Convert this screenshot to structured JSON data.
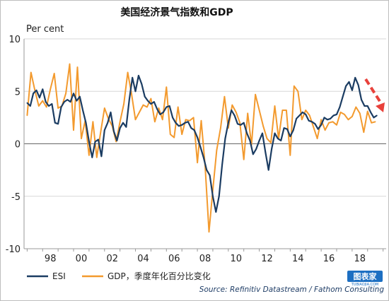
{
  "chart_data": {
    "type": "line",
    "title": "美国经济景气指数和GDP",
    "ylabel": "Per cent",
    "ylim": [
      -10,
      10
    ],
    "yticks": [
      "10",
      "5",
      "0",
      "-5",
      "-10"
    ],
    "xlim": [
      1996.8,
      2020.2
    ],
    "xticks": [
      "98",
      "00",
      "02",
      "04",
      "06",
      "08",
      "10",
      "12",
      "14",
      "16",
      "18"
    ],
    "grid": "horizontal",
    "legend_position": "bottom-left",
    "series": [
      {
        "name": "ESI",
        "color": "#1b3c62",
        "x": [
          1997.0,
          1997.2,
          1997.4,
          1997.6,
          1997.8,
          1998.0,
          1998.2,
          1998.4,
          1998.6,
          1998.8,
          1999.0,
          1999.2,
          1999.4,
          1999.6,
          1999.8,
          2000.0,
          2000.2,
          2000.4,
          2000.6,
          2000.8,
          2001.0,
          2001.2,
          2001.4,
          2001.6,
          2001.8,
          2002.0,
          2002.2,
          2002.4,
          2002.6,
          2002.8,
          2003.0,
          2003.2,
          2003.4,
          2003.6,
          2003.8,
          2004.0,
          2004.2,
          2004.4,
          2004.6,
          2004.8,
          2005.0,
          2005.2,
          2005.4,
          2005.6,
          2005.8,
          2006.0,
          2006.2,
          2006.4,
          2006.6,
          2006.8,
          2007.0,
          2007.2,
          2007.4,
          2007.6,
          2007.8,
          2008.0,
          2008.2,
          2008.4,
          2008.6,
          2008.8,
          2009.0,
          2009.2,
          2009.4,
          2009.6,
          2009.8,
          2010.0,
          2010.2,
          2010.4,
          2010.6,
          2010.8,
          2011.0,
          2011.2,
          2011.4,
          2011.6,
          2011.8,
          2012.0,
          2012.2,
          2012.4,
          2012.6,
          2012.8,
          2013.0,
          2013.2,
          2013.4,
          2013.6,
          2013.8,
          2014.0,
          2014.2,
          2014.4,
          2014.6,
          2014.8,
          2015.0,
          2015.2,
          2015.4,
          2015.6,
          2015.8,
          2016.0,
          2016.2,
          2016.4,
          2016.6,
          2016.8,
          2017.0,
          2017.2,
          2017.4,
          2017.6,
          2017.8,
          2018.0,
          2018.2,
          2018.4,
          2018.6,
          2018.8,
          2019.0,
          2019.2,
          2019.4,
          2019.6
        ],
        "values": [
          3.9,
          3.6,
          4.8,
          5.1,
          4.4,
          5.2,
          4.0,
          3.6,
          3.8,
          2.0,
          1.9,
          3.5,
          4.0,
          4.2,
          4.0,
          4.8,
          4.1,
          4.5,
          3.2,
          2.0,
          0.2,
          -1.3,
          0.2,
          0.4,
          -1.2,
          1.3,
          2.0,
          3.0,
          1.2,
          0.3,
          1.5,
          2.0,
          1.6,
          4.2,
          6.3,
          5.0,
          6.5,
          5.7,
          4.5,
          4.1,
          3.8,
          4.0,
          3.3,
          2.8,
          3.0,
          3.5,
          3.6,
          2.5,
          2.0,
          1.7,
          1.8,
          2.0,
          2.1,
          1.5,
          1.3,
          0.6,
          -0.3,
          -1.3,
          -2.5,
          -3.0,
          -5.0,
          -6.5,
          -5.0,
          -2.0,
          0.5,
          2.0,
          3.2,
          2.7,
          1.9,
          1.8,
          2.0,
          1.0,
          0.3,
          -1.0,
          -0.5,
          0.3,
          1.0,
          -0.8,
          -2.5,
          -0.5,
          1.0,
          0.5,
          0.3,
          1.5,
          1.4,
          0.7,
          1.3,
          2.4,
          2.7,
          3.0,
          2.8,
          2.2,
          2.1,
          1.9,
          1.4,
          1.8,
          2.5,
          2.3,
          2.4,
          2.7,
          2.8,
          3.5,
          4.5,
          5.5,
          5.9,
          5.1,
          6.3,
          5.6,
          4.2,
          3.6,
          3.6,
          3.0,
          2.5,
          2.7
        ]
      },
      {
        "name": "GDP，季度年化百分比变化",
        "color": "#f39a2e",
        "x": [
          1997.0,
          1997.25,
          1997.5,
          1997.75,
          1998.0,
          1998.25,
          1998.5,
          1998.75,
          1999.0,
          1999.25,
          1999.5,
          1999.75,
          2000.0,
          2000.25,
          2000.5,
          2000.75,
          2001.0,
          2001.25,
          2001.5,
          2001.75,
          2002.0,
          2002.25,
          2002.5,
          2002.75,
          2003.0,
          2003.25,
          2003.5,
          2003.75,
          2004.0,
          2004.25,
          2004.5,
          2004.75,
          2005.0,
          2005.25,
          2005.5,
          2005.75,
          2006.0,
          2006.25,
          2006.5,
          2006.75,
          2007.0,
          2007.25,
          2007.5,
          2007.75,
          2008.0,
          2008.25,
          2008.5,
          2008.75,
          2009.0,
          2009.25,
          2009.5,
          2009.75,
          2010.0,
          2010.25,
          2010.5,
          2010.75,
          2011.0,
          2011.25,
          2011.5,
          2011.75,
          2012.0,
          2012.25,
          2012.5,
          2012.75,
          2013.0,
          2013.25,
          2013.5,
          2013.75,
          2014.0,
          2014.25,
          2014.5,
          2014.75,
          2015.0,
          2015.25,
          2015.5,
          2015.75,
          2016.0,
          2016.25,
          2016.5,
          2016.75,
          2017.0,
          2017.25,
          2017.5,
          2017.75,
          2018.0,
          2018.25,
          2018.5,
          2018.75,
          2019.0,
          2019.25,
          2019.5
        ],
        "values": [
          2.7,
          6.8,
          5.1,
          3.6,
          4.1,
          3.5,
          5.2,
          6.7,
          3.4,
          3.6,
          4.8,
          7.6,
          1.3,
          7.3,
          0.5,
          2.2,
          -1.1,
          2.1,
          -1.3,
          1.1,
          3.4,
          2.4,
          1.7,
          0.2,
          2.1,
          3.8,
          6.8,
          4.7,
          2.3,
          3.0,
          3.7,
          3.5,
          4.3,
          2.1,
          3.4,
          2.3,
          5.4,
          0.9,
          0.6,
          3.5,
          0.9,
          2.3,
          2.2,
          2.5,
          -1.8,
          2.2,
          -2.1,
          -8.4,
          -4.4,
          -0.6,
          1.5,
          4.5,
          1.5,
          3.7,
          3.0,
          2.0,
          -1.5,
          2.9,
          -0.1,
          4.7,
          3.2,
          1.7,
          0.5,
          0.1,
          3.6,
          0.5,
          3.2,
          3.2,
          -1.1,
          5.5,
          5.0,
          2.3,
          3.2,
          2.7,
          1.6,
          0.5,
          2.3,
          1.3,
          2.0,
          2.1,
          1.8,
          3.0,
          2.8,
          2.3,
          2.6,
          3.5,
          2.9,
          1.1,
          3.1,
          2.0,
          2.1
        ]
      }
    ],
    "source": "Source: Refinitiv Datastream / Fathom Consulting"
  },
  "watermark": {
    "text": "图表家",
    "url": "TUBIAOJIA.COM",
    "color": "#1d6fc2"
  }
}
